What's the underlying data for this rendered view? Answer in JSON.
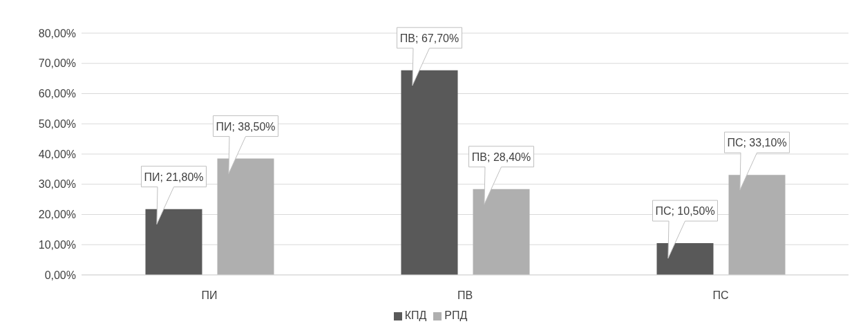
{
  "chart_data": {
    "type": "bar",
    "categories": [
      "ПИ",
      "ПВ",
      "ПС"
    ],
    "series": [
      {
        "name": "КПД",
        "color": "#595959",
        "values": [
          21.8,
          67.7,
          10.5
        ],
        "value_labels": [
          "ПИ; 21,80%",
          "ПВ; 67,70%",
          "ПС; 10,50%"
        ]
      },
      {
        "name": "РПД",
        "color": "#afafaf",
        "values": [
          38.5,
          28.4,
          33.1
        ],
        "value_labels": [
          "ПИ; 38,50%",
          "ПВ; 28,40%",
          "ПС; 33,10%"
        ]
      }
    ],
    "ylim": [
      0,
      80
    ],
    "yticks": [
      {
        "value": 0,
        "label": "0,00%"
      },
      {
        "value": 10,
        "label": "10,00%"
      },
      {
        "value": 20,
        "label": "20,00%"
      },
      {
        "value": 30,
        "label": "30,00%"
      },
      {
        "value": 40,
        "label": "40,00%"
      },
      {
        "value": 50,
        "label": "50,00%"
      },
      {
        "value": 60,
        "label": "60,00%"
      },
      {
        "value": 70,
        "label": "70,00%"
      },
      {
        "value": 80,
        "label": "80,00%"
      }
    ],
    "grid": "y",
    "legend": "bottom"
  }
}
